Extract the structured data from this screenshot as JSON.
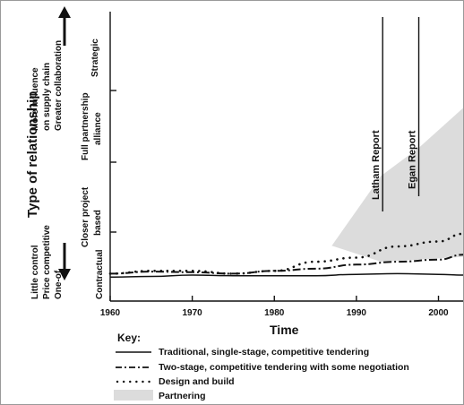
{
  "chart_data": {
    "type": "line",
    "xlabel": "Time",
    "ylabel": "Type of relationship",
    "xlim": [
      1960,
      2003
    ],
    "x_ticks": [
      "1960",
      "1970",
      "1980",
      "1990",
      "2000"
    ],
    "y_categories": [
      "Contractual",
      "Closer project based",
      "Full partnership alliance",
      "Strategic"
    ],
    "y_bottom_annotation": [
      "Little control",
      "Price competitive",
      "One-of"
    ],
    "y_top_annotation": [
      "More influence on supply chain",
      "Greater collaboration"
    ],
    "annotations": [
      {
        "text": "Latham Report",
        "x": 1993.2
      },
      {
        "text": "Egan Report",
        "x": 1997.6
      }
    ],
    "series": [
      {
        "name": "Traditional, single-stage, competitive tendering",
        "style": "solid",
        "x": [
          1960,
          1965,
          1970,
          1975,
          1980,
          1985,
          1990,
          1995,
          2000,
          2003
        ],
        "y": [
          0.15,
          0.16,
          0.18,
          0.17,
          0.17,
          0.17,
          0.19,
          0.2,
          0.19,
          0.18
        ]
      },
      {
        "name": "Two-stage, competitive tendering with some negotiation",
        "style": "dash-dot",
        "x": [
          1960,
          1965,
          1970,
          1975,
          1980,
          1985,
          1990,
          1995,
          2000,
          2003
        ],
        "y": [
          0.2,
          0.23,
          0.22,
          0.2,
          0.24,
          0.27,
          0.33,
          0.37,
          0.4,
          0.47
        ]
      },
      {
        "name": "Design and build",
        "style": "dotted",
        "x": [
          1960,
          1965,
          1970,
          1975,
          1980,
          1985,
          1990,
          1995,
          2000,
          2003
        ],
        "y": [
          0.2,
          0.24,
          0.24,
          0.2,
          0.24,
          0.37,
          0.43,
          0.59,
          0.66,
          0.77
        ]
      }
    ],
    "area": {
      "name": "Partnering",
      "x": [
        1987,
        1993,
        1997.6,
        2003
      ],
      "upper": [
        0.6,
        1.6,
        2.0,
        2.57
      ],
      "lower": [
        0.6,
        0.37,
        0.4,
        0.44
      ]
    }
  },
  "key": {
    "title": "Key:",
    "items": [
      "Traditional, single-stage, competitive tendering",
      "Two-stage, competitive tendering with some negotiation",
      "Design and build",
      "Partnering"
    ]
  },
  "colors": {
    "area": "#dcdcdc",
    "ink": "#111111"
  }
}
